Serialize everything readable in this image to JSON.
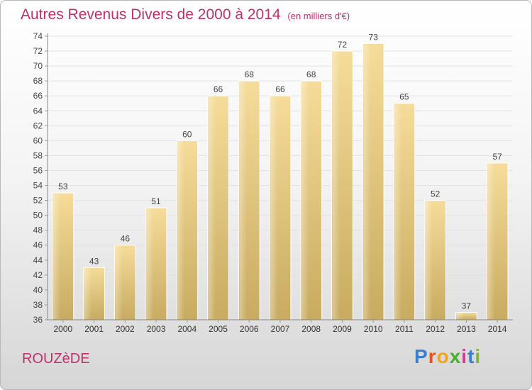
{
  "header": {
    "title": "Autres Revenus Divers de 2000 à 2014",
    "subtitle": "(en milliers d'€)"
  },
  "footer": {
    "place": "ROUZèDE",
    "logo_letters": [
      "P",
      "r",
      "o",
      "x",
      "i",
      "t",
      "i"
    ],
    "logo_colors": [
      "#3a7fd0",
      "#e8501e",
      "#f4a417",
      "#4caf2a",
      "#d63a8e",
      "#3a7fd0",
      "#7cb342"
    ]
  },
  "chart_data": {
    "type": "bar",
    "categories": [
      "2000",
      "2001",
      "2002",
      "2003",
      "2004",
      "2005",
      "2006",
      "2007",
      "2008",
      "2009",
      "2010",
      "2011",
      "2012",
      "2013",
      "2014"
    ],
    "values": [
      53,
      43,
      46,
      51,
      60,
      66,
      68,
      66,
      68,
      72,
      73,
      65,
      52,
      37,
      57
    ],
    "title": "Autres Revenus Divers de 2000 à 2014",
    "xlabel": "",
    "ylabel": "",
    "ylim": [
      36,
      74
    ],
    "yticks": [
      36,
      38,
      40,
      42,
      44,
      46,
      48,
      50,
      52,
      54,
      56,
      58,
      60,
      62,
      64,
      66,
      68,
      70,
      72,
      74
    ],
    "grid": true,
    "bar_color": "#e8c97a"
  }
}
